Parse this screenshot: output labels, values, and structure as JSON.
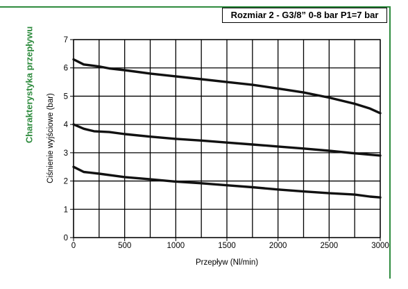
{
  "side_title": "Charakterystyka przepływu",
  "box_title": "Rozmiar 2 - G3/8” 0-8 bar P1=7 bar",
  "colors": {
    "accent": "#2e8b3e",
    "curve": "#111111",
    "grid": "#000000"
  },
  "chart_data": {
    "type": "line",
    "title": "Rozmiar 2 - G3/8” 0-8 bar P1=7 bar",
    "xlabel": "Przepływ (Nl/min)",
    "ylabel": "Ciśnienie wyjściowe (bar)",
    "xlim": [
      0,
      3000
    ],
    "ylim": [
      0,
      7
    ],
    "xticks": [
      0,
      500,
      1000,
      1500,
      2000,
      2500,
      3000
    ],
    "yticks": [
      0,
      1,
      2,
      3,
      4,
      5,
      6,
      7
    ],
    "grid": true,
    "series": [
      {
        "x": [
          0,
          100,
          250,
          350,
          500,
          750,
          1000,
          1250,
          1500,
          1750,
          2000,
          2250,
          2500,
          2750,
          2900,
          3000
        ],
        "y": [
          6.3,
          6.12,
          6.05,
          5.98,
          5.92,
          5.8,
          5.7,
          5.6,
          5.5,
          5.4,
          5.27,
          5.13,
          4.95,
          4.73,
          4.56,
          4.4
        ]
      },
      {
        "x": [
          0,
          100,
          200,
          350,
          500,
          750,
          1000,
          1250,
          1500,
          1750,
          2000,
          2250,
          2500,
          2750,
          3000
        ],
        "y": [
          4.0,
          3.85,
          3.76,
          3.73,
          3.66,
          3.57,
          3.49,
          3.43,
          3.36,
          3.29,
          3.22,
          3.15,
          3.07,
          2.98,
          2.9
        ]
      },
      {
        "x": [
          0,
          100,
          250,
          500,
          750,
          1000,
          1250,
          1500,
          1750,
          2000,
          2250,
          2500,
          2750,
          2900,
          3000
        ],
        "y": [
          2.5,
          2.32,
          2.26,
          2.14,
          2.06,
          1.98,
          1.92,
          1.85,
          1.78,
          1.7,
          1.63,
          1.57,
          1.52,
          1.45,
          1.42
        ]
      }
    ]
  }
}
